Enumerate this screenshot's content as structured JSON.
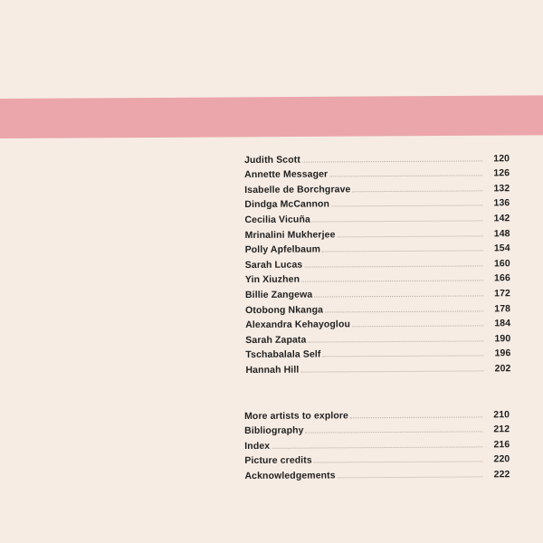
{
  "artists": [
    {
      "name": "Judith Scott",
      "page": "120"
    },
    {
      "name": "Annette Messager",
      "page": "126"
    },
    {
      "name": "Isabelle de Borchgrave",
      "page": "132"
    },
    {
      "name": "Dindga McCannon",
      "page": "136"
    },
    {
      "name": "Cecilia Vicuña",
      "page": "142"
    },
    {
      "name": "Mrinalini Mukherjee",
      "page": "148"
    },
    {
      "name": "Polly Apfelbaum",
      "page": "154"
    },
    {
      "name": "Sarah Lucas",
      "page": "160"
    },
    {
      "name": "Yin Xiuzhen",
      "page": "166"
    },
    {
      "name": "Billie Zangewa",
      "page": "172"
    },
    {
      "name": "Otobong Nkanga",
      "page": "178"
    },
    {
      "name": "Alexandra Kehayoglou",
      "page": "184"
    },
    {
      "name": "Sarah Zapata",
      "page": "190"
    },
    {
      "name": "Tschabalala Self",
      "page": "196"
    },
    {
      "name": "Hannah Hill",
      "page": "202"
    }
  ],
  "backmatter": [
    {
      "name": "More artists to explore",
      "page": "210"
    },
    {
      "name": "Bibliography",
      "page": "212"
    },
    {
      "name": "Index",
      "page": "216"
    },
    {
      "name": "Picture credits",
      "page": "220"
    },
    {
      "name": "Acknowledgements",
      "page": "222"
    }
  ],
  "colors": {
    "background": "#f6ece4",
    "band": "#eba6ab",
    "text": "#1f1f1f"
  }
}
